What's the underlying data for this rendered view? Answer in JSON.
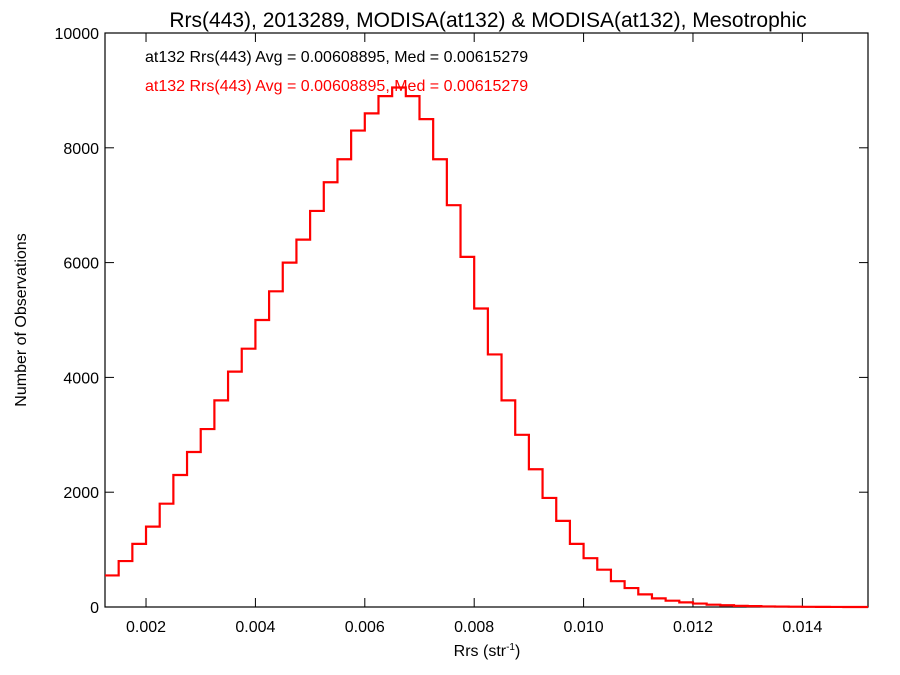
{
  "chart_data": {
    "type": "line",
    "title": "Rrs(443), 2013289, MODISA(at132) & MODISA(at132), Mesotrophic",
    "xlabel_main": "Rrs (str",
    "xlabel_sup": "-1",
    "xlabel_close": ")",
    "ylabel": "Number of Observations",
    "xlim": [
      0.00125,
      0.0152
    ],
    "ylim": [
      0,
      10000
    ],
    "x_ticks": [
      0.002,
      0.004,
      0.006,
      0.008,
      0.01,
      0.012,
      0.014
    ],
    "x_tick_labels": [
      "0.002",
      "0.004",
      "0.006",
      "0.008",
      "0.010",
      "0.012",
      "0.014"
    ],
    "y_ticks": [
      0,
      2000,
      4000,
      6000,
      8000,
      10000
    ],
    "y_tick_labels": [
      "0",
      "2000",
      "4000",
      "6000",
      "8000",
      "10000"
    ],
    "grid": false,
    "annotations": [
      {
        "text": "at132 Rrs(443) Avg = 0.00608895, Med = 0.00615279",
        "color": "#000000"
      },
      {
        "text": "at132 Rrs(443) Avg = 0.00608895, Med = 0.00615279",
        "color": "#ff0000"
      }
    ],
    "series": [
      {
        "color": "#ff0000",
        "step": true,
        "x": [
          0.00125,
          0.0015,
          0.00175,
          0.002,
          0.00225,
          0.0025,
          0.00275,
          0.003,
          0.00325,
          0.0035,
          0.00375,
          0.004,
          0.00425,
          0.0045,
          0.00475,
          0.005,
          0.00525,
          0.0055,
          0.00575,
          0.006,
          0.00625,
          0.0065,
          0.00675,
          0.007,
          0.00725,
          0.0075,
          0.00775,
          0.008,
          0.00825,
          0.0085,
          0.00875,
          0.009,
          0.00925,
          0.0095,
          0.00975,
          0.01,
          0.01025,
          0.0105,
          0.01075,
          0.011,
          0.01125,
          0.0115,
          0.01175,
          0.012,
          0.01225,
          0.0125,
          0.01275,
          0.013,
          0.01325,
          0.0135,
          0.01375,
          0.014,
          0.01425,
          0.0145,
          0.01475,
          0.015,
          0.0152
        ],
        "y": [
          550,
          800,
          1100,
          1400,
          1800,
          2300,
          2700,
          3100,
          3600,
          4100,
          4500,
          5000,
          5500,
          6000,
          6400,
          6900,
          7400,
          7800,
          8300,
          8600,
          8900,
          9050,
          8900,
          8500,
          7800,
          7000,
          6100,
          5200,
          4400,
          3600,
          3000,
          2400,
          1900,
          1500,
          1100,
          850,
          650,
          450,
          330,
          220,
          150,
          110,
          80,
          60,
          40,
          30,
          20,
          15,
          10,
          8,
          5,
          3,
          2,
          1,
          0,
          0,
          0
        ]
      }
    ]
  }
}
